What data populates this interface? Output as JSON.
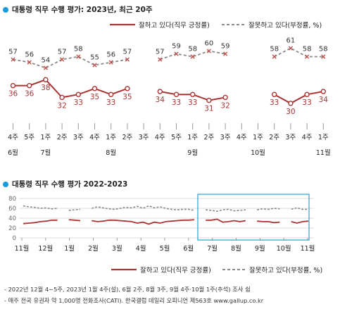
{
  "titles": {
    "top": "대통령 직무 수행 평가: 2023년, 최근 20주",
    "bottom": "대통령 직무 수행 평가 2022-2023"
  },
  "legend": {
    "approve": "잘하고 있다(직무 긍정률)",
    "disapprove": "잘못하고 있다(부정률, %)"
  },
  "colors": {
    "approve": "#a93434",
    "disapprove": "#8a8a8a",
    "disapprove_marker": "#c0504d",
    "title_dot": "#1a9ad6",
    "highlight_box": "#35a9d6",
    "grid": "#cfcfcf"
  },
  "chart_data": [
    {
      "type": "line",
      "title": "대통령 직무 수행 평가: 2023년, 최근 20주",
      "x_categories": [
        "4주",
        "5주",
        "1주",
        "2주",
        "3주",
        "4주",
        "1주",
        "2주",
        "3주",
        "4주",
        "5주",
        "1주",
        "2주",
        "3주",
        "4주",
        "1주",
        "2주",
        "3주",
        "4주",
        "1주"
      ],
      "month_labels": [
        {
          "label": "6월",
          "at": 0
        },
        {
          "label": "7월",
          "at": 2
        },
        {
          "label": "8월",
          "at": 6
        },
        {
          "label": "9월",
          "at": 11
        },
        {
          "label": "10월",
          "at": 15
        },
        {
          "label": "11월",
          "at": 19
        }
      ],
      "series": [
        {
          "name": "잘하고 있다(직무 긍정률)",
          "values": [
            36,
            36,
            38,
            32,
            33,
            35,
            33,
            35,
            null,
            34,
            33,
            33,
            31,
            32,
            null,
            null,
            33,
            30,
            33,
            34
          ]
        },
        {
          "name": "잘못하고 있다(부정률, %)",
          "values": [
            57,
            56,
            54,
            57,
            58,
            55,
            56,
            57,
            null,
            57,
            59,
            58,
            60,
            59,
            null,
            null,
            58,
            61,
            58,
            58
          ]
        }
      ],
      "ylim": [
        20,
        70
      ]
    },
    {
      "type": "line",
      "title": "대통령 직무 수행 평가 2022-2023",
      "yticks": [
        0,
        20,
        40,
        60,
        80
      ],
      "ylim": [
        0,
        80
      ],
      "x_labels": [
        "11월",
        "12월",
        "1월",
        "2월",
        "3월",
        "4월",
        "5월",
        "6월",
        "7월",
        "8월",
        "9월",
        "10월",
        "11월"
      ],
      "series": [
        {
          "name": "잘하고 있다(직무 긍정률)",
          "segments": [
            [
              29,
              30,
              31,
              33,
              34,
              36,
              36
            ],
            [
              37,
              36,
              35
            ],
            [
              35,
              33,
              34,
              36,
              36,
              35,
              34,
              33,
              30,
              32,
              28,
              32,
              30,
              33,
              34,
              35,
              36,
              36,
              37
            ],
            [
              36,
              36,
              38,
              32,
              33,
              35,
              33,
              35
            ],
            [
              34,
              33,
              33,
              31,
              32
            ],
            [
              33,
              30,
              33,
              34
            ]
          ]
        },
        {
          "name": "잘못하고 있다(부정률, %)",
          "segments": [
            [
              65,
              63,
              62,
              60,
              61,
              59,
              60
            ],
            [
              56,
              57,
              58
            ],
            [
              60,
              63,
              61,
              59,
              58,
              60,
              62,
              61,
              64,
              60,
              65,
              61,
              63,
              60,
              58,
              57,
              58,
              58,
              56
            ],
            [
              57,
              56,
              54,
              57,
              58,
              55,
              56,
              57
            ],
            [
              57,
              59,
              58,
              60,
              59
            ],
            [
              58,
              61,
              58,
              58
            ]
          ]
        }
      ]
    }
  ],
  "notes": [
    "- 2022년 12월 4~5주, 2023년 1월 4주(설), 6월 2주, 8월 3주, 9월 4주·10월 1주(추석) 조사 쉼",
    "- 매주 전국 유권자 약 1,000명 전화조사(CATI). 한국갤럽 데일리 오피니언 제563호 www.gallup.co.kr"
  ]
}
